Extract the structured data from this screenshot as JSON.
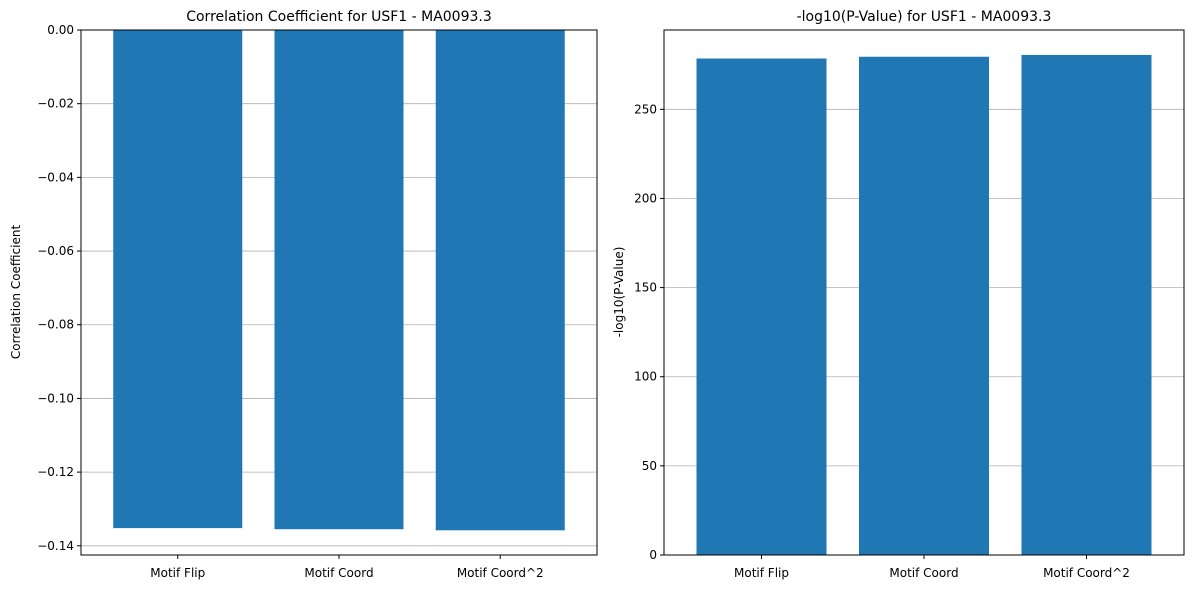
{
  "chart_data": [
    {
      "type": "bar",
      "title": "Correlation Coefficient for USF1 - MA0093.3",
      "xlabel": "",
      "ylabel": "Correlation Coefficient",
      "categories": [
        "Motif Flip",
        "Motif Coord",
        "Motif Coord^2"
      ],
      "values": [
        -0.1352,
        -0.1355,
        -0.1358
      ],
      "ylim": [
        -0.1425,
        0.0
      ],
      "yticks": [
        0.0,
        -0.02,
        -0.04,
        -0.06,
        -0.08,
        -0.1,
        -0.12,
        -0.14
      ],
      "ytick_labels": [
        "0.00",
        "−0.02",
        "−0.04",
        "−0.06",
        "−0.08",
        "−0.10",
        "−0.12",
        "−0.14"
      ],
      "grid": "y",
      "color": "#1f77b4"
    },
    {
      "type": "bar",
      "title": "-log10(P-Value) for USF1 - MA0093.3",
      "xlabel": "",
      "ylabel": "-log10(P-Value)",
      "categories": [
        "Motif Flip",
        "Motif Coord",
        "Motif Coord^2"
      ],
      "values": [
        278.5,
        279.5,
        280.5
      ],
      "ylim": [
        0,
        294.5
      ],
      "yticks": [
        0,
        50,
        100,
        150,
        200,
        250
      ],
      "ytick_labels": [
        "0",
        "50",
        "100",
        "150",
        "200",
        "250"
      ],
      "grid": "y",
      "color": "#1f77b4"
    }
  ]
}
